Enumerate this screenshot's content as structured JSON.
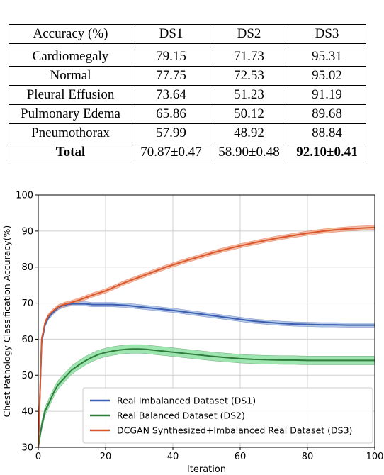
{
  "table": {
    "headers": [
      "Accuracy (%)",
      "DS1",
      "DS2",
      "DS3"
    ],
    "rows": [
      [
        "Cardiomegaly",
        "79.15",
        "71.73",
        "95.31"
      ],
      [
        "Normal",
        "77.75",
        "72.53",
        "95.02"
      ],
      [
        "Pleural Effusion",
        "73.64",
        "51.23",
        "91.19"
      ],
      [
        "Pulmonary Edema",
        "65.86",
        "50.12",
        "89.68"
      ],
      [
        "Pneumothorax",
        "57.99",
        "48.92",
        "88.84"
      ]
    ],
    "total": [
      "Total",
      "70.87±0.47",
      "58.90±0.48",
      "92.10±0.41"
    ]
  },
  "chart_data": {
    "type": "line",
    "xlabel": "Iteration",
    "ylabel": "Chest Pathology Classification Accuracy(%)",
    "xlim": [
      0,
      100
    ],
    "ylim": [
      30,
      100
    ],
    "xticks": [
      0,
      20,
      40,
      60,
      80,
      100
    ],
    "yticks": [
      30,
      40,
      50,
      60,
      70,
      80,
      90,
      100
    ],
    "grid": true,
    "legend_position": "bottom-right",
    "x": [
      0,
      1,
      2,
      3,
      4,
      5,
      6,
      7,
      8,
      9,
      10,
      12,
      14,
      16,
      18,
      20,
      22,
      24,
      26,
      28,
      30,
      32,
      34,
      36,
      38,
      40,
      44,
      48,
      52,
      56,
      60,
      64,
      68,
      72,
      76,
      80,
      84,
      88,
      92,
      96,
      100
    ],
    "series": [
      {
        "name": "Real Imbalanced Dataset (DS1)",
        "color": "#3a5fb0",
        "band_color": "#9db4e0",
        "values": [
          30,
          59,
          64,
          66,
          67,
          68,
          68.8,
          69.2,
          69.5,
          69.7,
          69.8,
          69.8,
          69.8,
          69.6,
          69.6,
          69.6,
          69.6,
          69.5,
          69.4,
          69.2,
          69.0,
          68.8,
          68.6,
          68.4,
          68.2,
          68.0,
          67.5,
          67.0,
          66.5,
          66.0,
          65.5,
          65.0,
          64.7,
          64.4,
          64.2,
          64.1,
          64.0,
          64.0,
          63.9,
          63.9,
          63.9
        ],
        "band": 0.6
      },
      {
        "name": "Real Balanced Dataset (DS2)",
        "color": "#2e7d3a",
        "band_color": "#7fdc98",
        "values": [
          30,
          36,
          40,
          42,
          44,
          46,
          47.5,
          48.5,
          49.5,
          50.5,
          51.5,
          52.8,
          54.0,
          55.0,
          55.8,
          56.3,
          56.7,
          57.0,
          57.2,
          57.3,
          57.3,
          57.2,
          57.0,
          56.8,
          56.6,
          56.4,
          56.0,
          55.6,
          55.2,
          54.9,
          54.6,
          54.4,
          54.3,
          54.2,
          54.2,
          54.1,
          54.1,
          54.1,
          54.1,
          54.1,
          54.1
        ],
        "band": 1.2
      },
      {
        "name": "DCGAN Synthesized+Imbalanced Real Dataset (DS3)",
        "color": "#d9572b",
        "band_color": "#f0a386",
        "values": [
          30,
          60,
          64.5,
          66.5,
          67.5,
          68.3,
          69.0,
          69.4,
          69.7,
          69.9,
          70.2,
          70.8,
          71.5,
          72.2,
          72.8,
          73.4,
          74.2,
          75.0,
          75.8,
          76.5,
          77.2,
          77.9,
          78.6,
          79.3,
          80.0,
          80.6,
          81.8,
          82.9,
          84.0,
          85.0,
          85.9,
          86.7,
          87.5,
          88.2,
          88.8,
          89.4,
          89.9,
          90.3,
          90.6,
          90.8,
          91.0
        ],
        "band": 0.6
      }
    ]
  }
}
